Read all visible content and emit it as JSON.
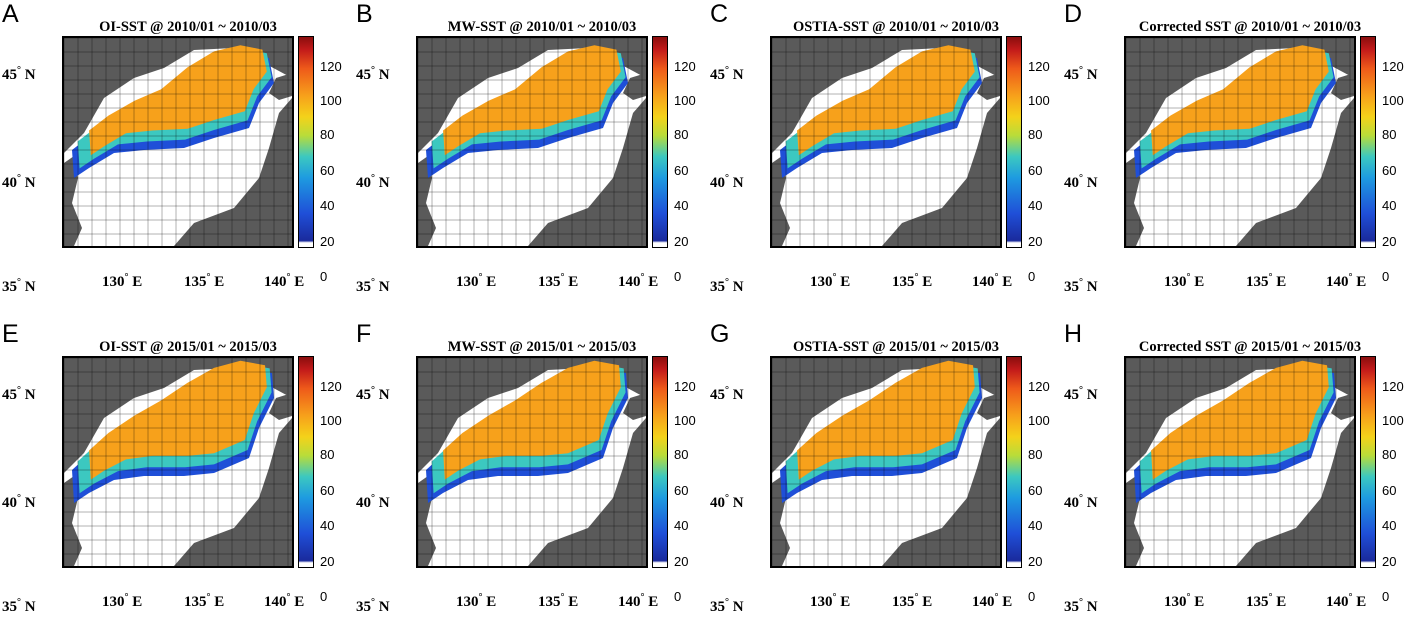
{
  "degree_symbol": "°",
  "panels": [
    {
      "letter": "A",
      "title": "OI-SST @ 2010/01 ~ 2010/03"
    },
    {
      "letter": "B",
      "title": "MW-SST @ 2010/01 ~ 2010/03"
    },
    {
      "letter": "C",
      "title": "OSTIA-SST @ 2010/01 ~ 2010/03"
    },
    {
      "letter": "D",
      "title": "Corrected SST @ 2010/01 ~ 2010/03"
    },
    {
      "letter": "E",
      "title": "OI-SST @ 2015/01 ~ 2015/03"
    },
    {
      "letter": "F",
      "title": "MW-SST @ 2015/01 ~ 2015/03"
    },
    {
      "letter": "G",
      "title": "OSTIA-SST @ 2015/01 ~ 2015/03"
    },
    {
      "letter": "H",
      "title": "Corrected SST @ 2015/01 ~ 2015/03"
    }
  ],
  "colorbar": {
    "ticks": [
      "120",
      "100",
      "80",
      "60",
      "40",
      "20",
      "0"
    ],
    "range": [
      0,
      120
    ],
    "colors": [
      "#1a2a9c",
      "#1f4fd8",
      "#1e9be0",
      "#3cc8c0",
      "#b8dc3a",
      "#f4d21a",
      "#f7a11b",
      "#ee5a1a",
      "#c21a1a",
      "#8a0d0d"
    ]
  },
  "lat_labels": [
    {
      "num": "45",
      "hemi": "N"
    },
    {
      "num": "40",
      "hemi": "N"
    },
    {
      "num": "35",
      "hemi": "N"
    }
  ],
  "lon_labels": [
    {
      "num": "130",
      "hemi": "E"
    },
    {
      "num": "135",
      "hemi": "E"
    },
    {
      "num": "140",
      "hemi": "E"
    }
  ],
  "map_colors": {
    "land": "#5a5a5a",
    "water": "#ffffff",
    "grid": "#000000"
  }
}
